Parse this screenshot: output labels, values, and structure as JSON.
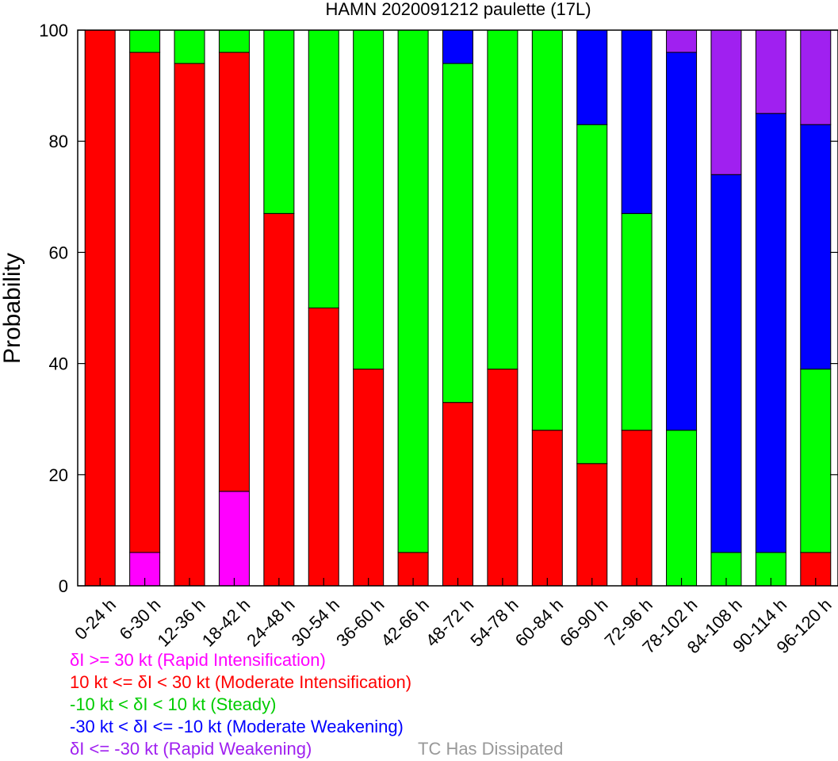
{
  "chart_data": {
    "type": "bar",
    "stacked": true,
    "title": "HAMN 2020091212 paulette (17L)",
    "xlabel": "",
    "ylabel": "Probability",
    "ylim": [
      0,
      100
    ],
    "yticks": [
      0,
      20,
      40,
      60,
      80,
      100
    ],
    "grid": false,
    "categories": [
      "0-24 h",
      "6-30 h",
      "12-36 h",
      "18-42 h",
      "24-48 h",
      "30-54 h",
      "36-60 h",
      "42-66 h",
      "48-72 h",
      "54-78 h",
      "60-84 h",
      "66-90 h",
      "72-96 h",
      "78-102 h",
      "84-108 h",
      "90-114 h",
      "96-120 h"
    ],
    "series": [
      {
        "name": "δI >= 30 kt (Rapid Intensification)",
        "color": "#ff00ff",
        "values": [
          0,
          6,
          0,
          17,
          0,
          0,
          0,
          0,
          0,
          0,
          0,
          0,
          0,
          0,
          0,
          0,
          0
        ]
      },
      {
        "name": "10 kt <= δI < 30 kt (Moderate Intensification)",
        "color": "#ff0000",
        "values": [
          100,
          90,
          94,
          79,
          67,
          50,
          39,
          6,
          33,
          39,
          28,
          22,
          28,
          0,
          0,
          0,
          6
        ]
      },
      {
        "name": "-10 kt < δI < 10 kt (Steady)",
        "color": "#00ff00",
        "values": [
          0,
          4,
          6,
          4,
          33,
          50,
          61,
          94,
          61,
          61,
          72,
          61,
          39,
          28,
          6,
          6,
          33
        ]
      },
      {
        "name": "-30 kt < δI <= -10 kt (Moderate Weakening)",
        "color": "#0000ff",
        "values": [
          0,
          0,
          0,
          0,
          0,
          0,
          0,
          0,
          6,
          0,
          0,
          17,
          33,
          68,
          68,
          79,
          44
        ]
      },
      {
        "name": "δI <= -30 kt (Rapid Weakening)",
        "color": "#a020f0",
        "values": [
          0,
          0,
          0,
          0,
          0,
          0,
          0,
          0,
          0,
          0,
          0,
          0,
          0,
          4,
          26,
          15,
          17
        ]
      },
      {
        "name": "TC Has Dissipated",
        "color": "#999999",
        "values": [
          0,
          0,
          0,
          0,
          0,
          0,
          0,
          0,
          0,
          0,
          0,
          0,
          0,
          0,
          0,
          0,
          0
        ]
      }
    ],
    "legend": {
      "placement": "bottom",
      "entries": [
        {
          "text": "δI >= 30 kt (Rapid Intensification)",
          "color": "#ff00ff"
        },
        {
          "text": "10 kt <= δI < 30 kt (Moderate Intensification)",
          "color": "#ff0000"
        },
        {
          "text": "-10 kt < δI < 10 kt (Steady)",
          "color": "#00cc00"
        },
        {
          "text": "-30 kt < δI <= -10 kt (Moderate Weakening)",
          "color": "#0000ff"
        },
        {
          "text": "δI <= -30 kt (Rapid Weakening)",
          "color": "#a020f0"
        },
        {
          "text": "TC Has Dissipated",
          "color": "#999999"
        }
      ]
    }
  }
}
